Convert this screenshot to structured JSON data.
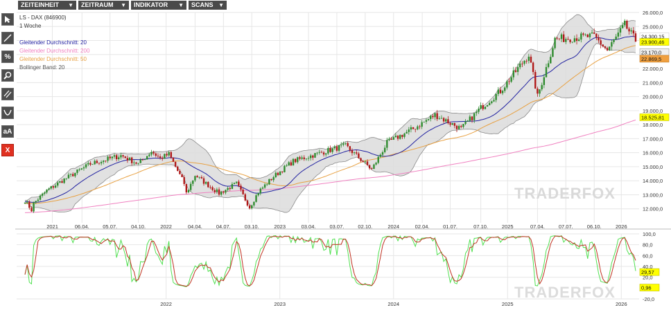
{
  "menu": [
    {
      "label": "ZEITEINHEIT"
    },
    {
      "label": "ZEITRAUM"
    },
    {
      "label": "INDIKATOR"
    },
    {
      "label": "SCANS"
    }
  ],
  "toolbar": {
    "percent_label": "%",
    "text_tool_label": "aA",
    "delete_label": "X"
  },
  "legend": {
    "instrument": "LS - DAX (846900)",
    "interval": "1 Woche",
    "sma20": "Gleitender Durchschnitt: 20",
    "sma200": "Gleitender Durchschnitt: 200",
    "sma50": "Gleitender Durchschnitt: 50",
    "bollinger": "Bollinger Band: 20"
  },
  "watermark": "TRADERFOX",
  "colors": {
    "up": "#2e8b2e",
    "down": "#b01818",
    "sma20": "#2020a0",
    "sma50": "#e8a040",
    "sma200": "#f080c0",
    "bollinger_fill": "#dcdcdc",
    "bollinger_line": "#8a8a8a",
    "stoch_k": "#50e050",
    "stoch_d": "#c03020",
    "grid": "#e6e6e6"
  },
  "chart_data": [
    {
      "type": "candlestick",
      "title": "",
      "yaxis_side": "right",
      "ylim": [
        11000,
        26000
      ],
      "y_ticks": [
        "12.000,0",
        "13.000,0",
        "14.000,0",
        "15.000,0",
        "16.000,0",
        "17.000,0",
        "18.000,0",
        "19.000,0",
        "20.000,0",
        "21.000,0",
        "22.000,0",
        "23.000,0",
        "24.000,0",
        "25.000,0",
        "26.000,0"
      ],
      "y_tick_values": [
        12000,
        13000,
        14000,
        15000,
        16000,
        17000,
        18000,
        19000,
        20000,
        21000,
        22000,
        23000,
        24000,
        25000,
        26000
      ],
      "x_ticks": [
        "2021",
        "06.04.",
        "05.07.",
        "04.10.",
        "2022",
        "04.04.",
        "04.07.",
        "03.10.",
        "2023",
        "03.04.",
        "03.07.",
        "02.10.",
        "2024",
        "02.04.",
        "01.07.",
        "07.10.",
        "2025",
        "07.04.",
        "07.07.",
        "06.10.",
        "2026"
      ],
      "x_tick_dates": [
        "2021-01-01",
        "2021-04-06",
        "2021-07-05",
        "2021-10-04",
        "2022-01-01",
        "2022-04-04",
        "2022-07-04",
        "2022-10-03",
        "2023-01-01",
        "2023-04-03",
        "2023-07-03",
        "2023-10-02",
        "2024-01-01",
        "2024-04-02",
        "2024-07-01",
        "2024-10-07",
        "2025-01-01",
        "2025-04-07",
        "2025-07-07",
        "2025-10-06",
        "2026-01-01"
      ],
      "x_range": [
        "2020-10-05",
        "2026-02-16"
      ],
      "series": [
        {
          "name": "LS - DAX (846900)",
          "close_anchors": [
            [
              "2020-10-05",
              12600
            ],
            [
              "2020-10-26",
              11900
            ],
            [
              "2020-11-02",
              12400
            ],
            [
              "2020-12-14",
              13300
            ],
            [
              "2021-02-01",
              14000
            ],
            [
              "2021-05-03",
              15200
            ],
            [
              "2021-08-09",
              15800
            ],
            [
              "2021-10-04",
              15200
            ],
            [
              "2021-11-15",
              16100
            ],
            [
              "2021-12-13",
              15600
            ],
            [
              "2022-01-10",
              15900
            ],
            [
              "2022-02-28",
              13800
            ],
            [
              "2022-03-07",
              13100
            ],
            [
              "2022-04-04",
              14400
            ],
            [
              "2022-05-09",
              13800
            ],
            [
              "2022-06-20",
              13100
            ],
            [
              "2022-08-15",
              13800
            ],
            [
              "2022-09-26",
              12100
            ],
            [
              "2022-10-24",
              13200
            ],
            [
              "2022-12-12",
              14300
            ],
            [
              "2023-02-13",
              15400
            ],
            [
              "2023-06-12",
              16200
            ],
            [
              "2023-07-31",
              16500
            ],
            [
              "2023-10-23",
              14800
            ],
            [
              "2023-12-11",
              16700
            ],
            [
              "2024-03-04",
              17700
            ],
            [
              "2024-05-13",
              18700
            ],
            [
              "2024-08-05",
              17700
            ],
            [
              "2024-10-07",
              19200
            ],
            [
              "2024-12-09",
              20400
            ],
            [
              "2025-03-10",
              23000
            ],
            [
              "2025-04-07",
              20000
            ],
            [
              "2025-06-02",
              24100
            ],
            [
              "2025-07-28",
              24200
            ],
            [
              "2025-10-06",
              24300
            ],
            [
              "2025-11-17",
              23300
            ],
            [
              "2026-01-12",
              25100
            ],
            [
              "2026-02-16",
              24000
            ]
          ]
        },
        {
          "name": "Gleitender Durchschnitt: 20",
          "window": 20
        },
        {
          "name": "Gleitender Durchschnitt: 50",
          "window": 50
        },
        {
          "name": "Gleitender Durchschnitt: 200",
          "window": 200
        },
        {
          "name": "Bollinger Band: 20",
          "window": 20
        }
      ],
      "price_labels": [
        {
          "text": "24.300,15",
          "value": 24300,
          "bg": "#ffffff",
          "border": "#cccccc"
        },
        {
          "text": "23.900,46",
          "value": 23900,
          "bg": "#ffff00",
          "border": "#c0c000"
        },
        {
          "text": "23.170,0",
          "value": 23170,
          "bg": "#f0f0f0",
          "border": "#999999"
        },
        {
          "text": "22.869,5",
          "value": 22700,
          "bg": "#f0a040",
          "border": "#c07820"
        },
        {
          "text": "18.525,81",
          "value": 18525.81,
          "bg": "#ffff00",
          "border": "#c0c000"
        }
      ]
    },
    {
      "type": "line",
      "title": "",
      "yaxis_side": "right",
      "ylim": [
        -20,
        100
      ],
      "y_ticks": [
        "100,0",
        "80,0",
        "60,0",
        "40,0",
        "20,0",
        "-20,0"
      ],
      "y_tick_values": [
        100,
        80,
        60,
        40,
        20,
        -20
      ],
      "x_ticks": [
        "2022",
        "2023",
        "2024",
        "2025",
        "2026"
      ],
      "x_tick_dates": [
        "2022-01-01",
        "2023-01-01",
        "2024-01-01",
        "2025-01-01",
        "2026-01-01"
      ],
      "series": [
        {
          "name": "%K",
          "color": "#50e050"
        },
        {
          "name": "%D",
          "color": "#c03020"
        }
      ],
      "value_labels": [
        {
          "text": "29,57",
          "value": 29.57,
          "bg": "#ffff00",
          "border": "#c0c000"
        },
        {
          "text": "0,96",
          "value": 0.96,
          "bg": "#ffff00",
          "border": "#c0c000"
        }
      ]
    }
  ]
}
